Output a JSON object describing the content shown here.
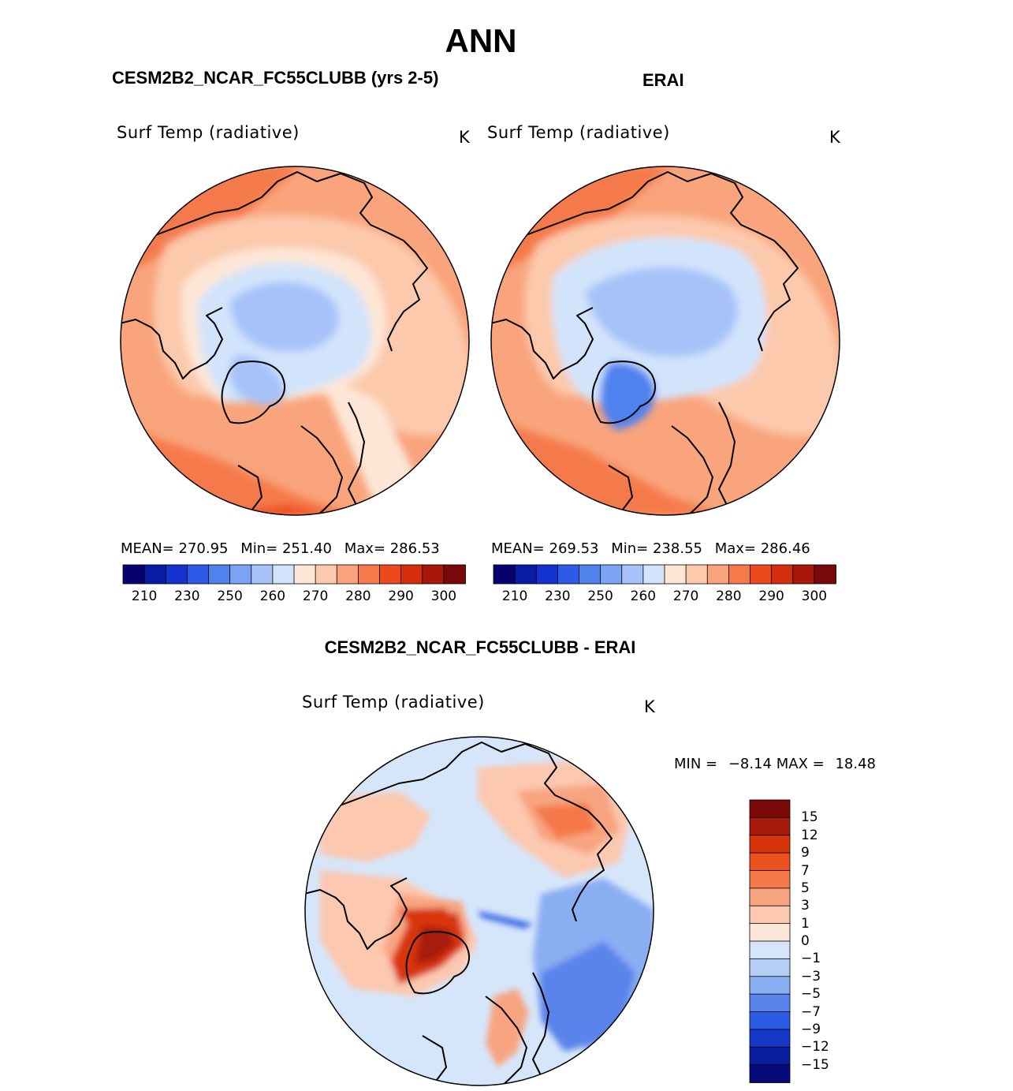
{
  "page_title": "ANN",
  "panels": {
    "model": {
      "header": "CESM2B2_NCAR_FC55CLUBB (yrs 2-5)",
      "variable": "Surf Temp (radiative)",
      "units": "K",
      "mean_label": "MEAN=",
      "mean": "270.95",
      "min_label": "Min=",
      "min": "251.40",
      "max_label": "Max=",
      "max": "286.53"
    },
    "obs": {
      "header": "ERAI",
      "variable": "Surf Temp (radiative)",
      "units": "K",
      "mean_label": "MEAN=",
      "mean": "269.53",
      "min_label": "Min=",
      "min": "238.55",
      "max_label": "Max=",
      "max": "286.46"
    },
    "diff": {
      "header": "CESM2B2_NCAR_FC55CLUBB - ERAI",
      "variable": "Surf Temp (radiative)",
      "units": "K",
      "min_label": "MIN =",
      "min": "−8.14",
      "max_label": "MAX =",
      "max": "18.48"
    }
  },
  "chart_data": [
    {
      "type": "heatmap",
      "title": "CESM2B2_NCAR_FC55CLUBB (yrs 2-5)",
      "variable": "Surf Temp (radiative)",
      "units": "K",
      "projection": "north polar stereographic",
      "stats": {
        "mean": 270.95,
        "min": 251.4,
        "max": 286.53
      },
      "colorbar": {
        "levels": [
          205,
          210,
          220,
          230,
          240,
          250,
          255,
          260,
          265,
          270,
          275,
          280,
          285,
          290,
          295,
          300
        ],
        "tick_labels": [
          "210",
          "230",
          "250",
          "260",
          "270",
          "280",
          "290",
          "300"
        ],
        "colors": [
          "#08006e",
          "#0a1ca6",
          "#1432d2",
          "#2d5ae6",
          "#5082ee",
          "#7ca4f4",
          "#a6c2f8",
          "#d2e4fc",
          "#fde6d6",
          "#fcc9ac",
          "#f9a47c",
          "#f57a4c",
          "#ec4a1c",
          "#d42e0c",
          "#a8180a",
          "#78080a"
        ]
      }
    },
    {
      "type": "heatmap",
      "title": "ERAI",
      "variable": "Surf Temp (radiative)",
      "units": "K",
      "projection": "north polar stereographic",
      "stats": {
        "mean": 269.53,
        "min": 238.55,
        "max": 286.46
      },
      "colorbar": {
        "levels": [
          205,
          210,
          220,
          230,
          240,
          250,
          255,
          260,
          265,
          270,
          275,
          280,
          285,
          290,
          295,
          300
        ],
        "tick_labels": [
          "210",
          "230",
          "250",
          "260",
          "270",
          "280",
          "290",
          "300"
        ],
        "colors": [
          "#08006e",
          "#0a1ca6",
          "#1432d2",
          "#2d5ae6",
          "#5082ee",
          "#7ca4f4",
          "#a6c2f8",
          "#d2e4fc",
          "#fde6d6",
          "#fcc9ac",
          "#f9a47c",
          "#f57a4c",
          "#ec4a1c",
          "#d42e0c",
          "#a8180a",
          "#78080a"
        ]
      }
    },
    {
      "type": "heatmap",
      "title": "CESM2B2_NCAR_FC55CLUBB - ERAI",
      "variable": "Surf Temp (radiative)",
      "units": "K",
      "projection": "north polar stereographic",
      "stats": {
        "min": -8.14,
        "max": 18.48
      },
      "colorbar": {
        "levels": [
          15,
          12,
          9,
          7,
          5,
          3,
          1,
          0,
          -1,
          -3,
          -5,
          -7,
          -9,
          -12,
          -15
        ],
        "tick_labels": [
          "15",
          "12",
          "9",
          "7",
          "5",
          "3",
          "1",
          "0",
          "−1",
          "−3",
          "−5",
          "−7",
          "−9",
          "−12",
          "−15"
        ],
        "colors": [
          "#7a0a08",
          "#a81a0a",
          "#d8340c",
          "#ec5220",
          "#f4784a",
          "#f8a480",
          "#fcc8b0",
          "#fde6d8",
          "#d6e6fa",
          "#b4cef6",
          "#8aaef2",
          "#5a84ec",
          "#2c5ce4",
          "#1438c8",
          "#0a1ea0",
          "#080a7a"
        ]
      }
    }
  ]
}
